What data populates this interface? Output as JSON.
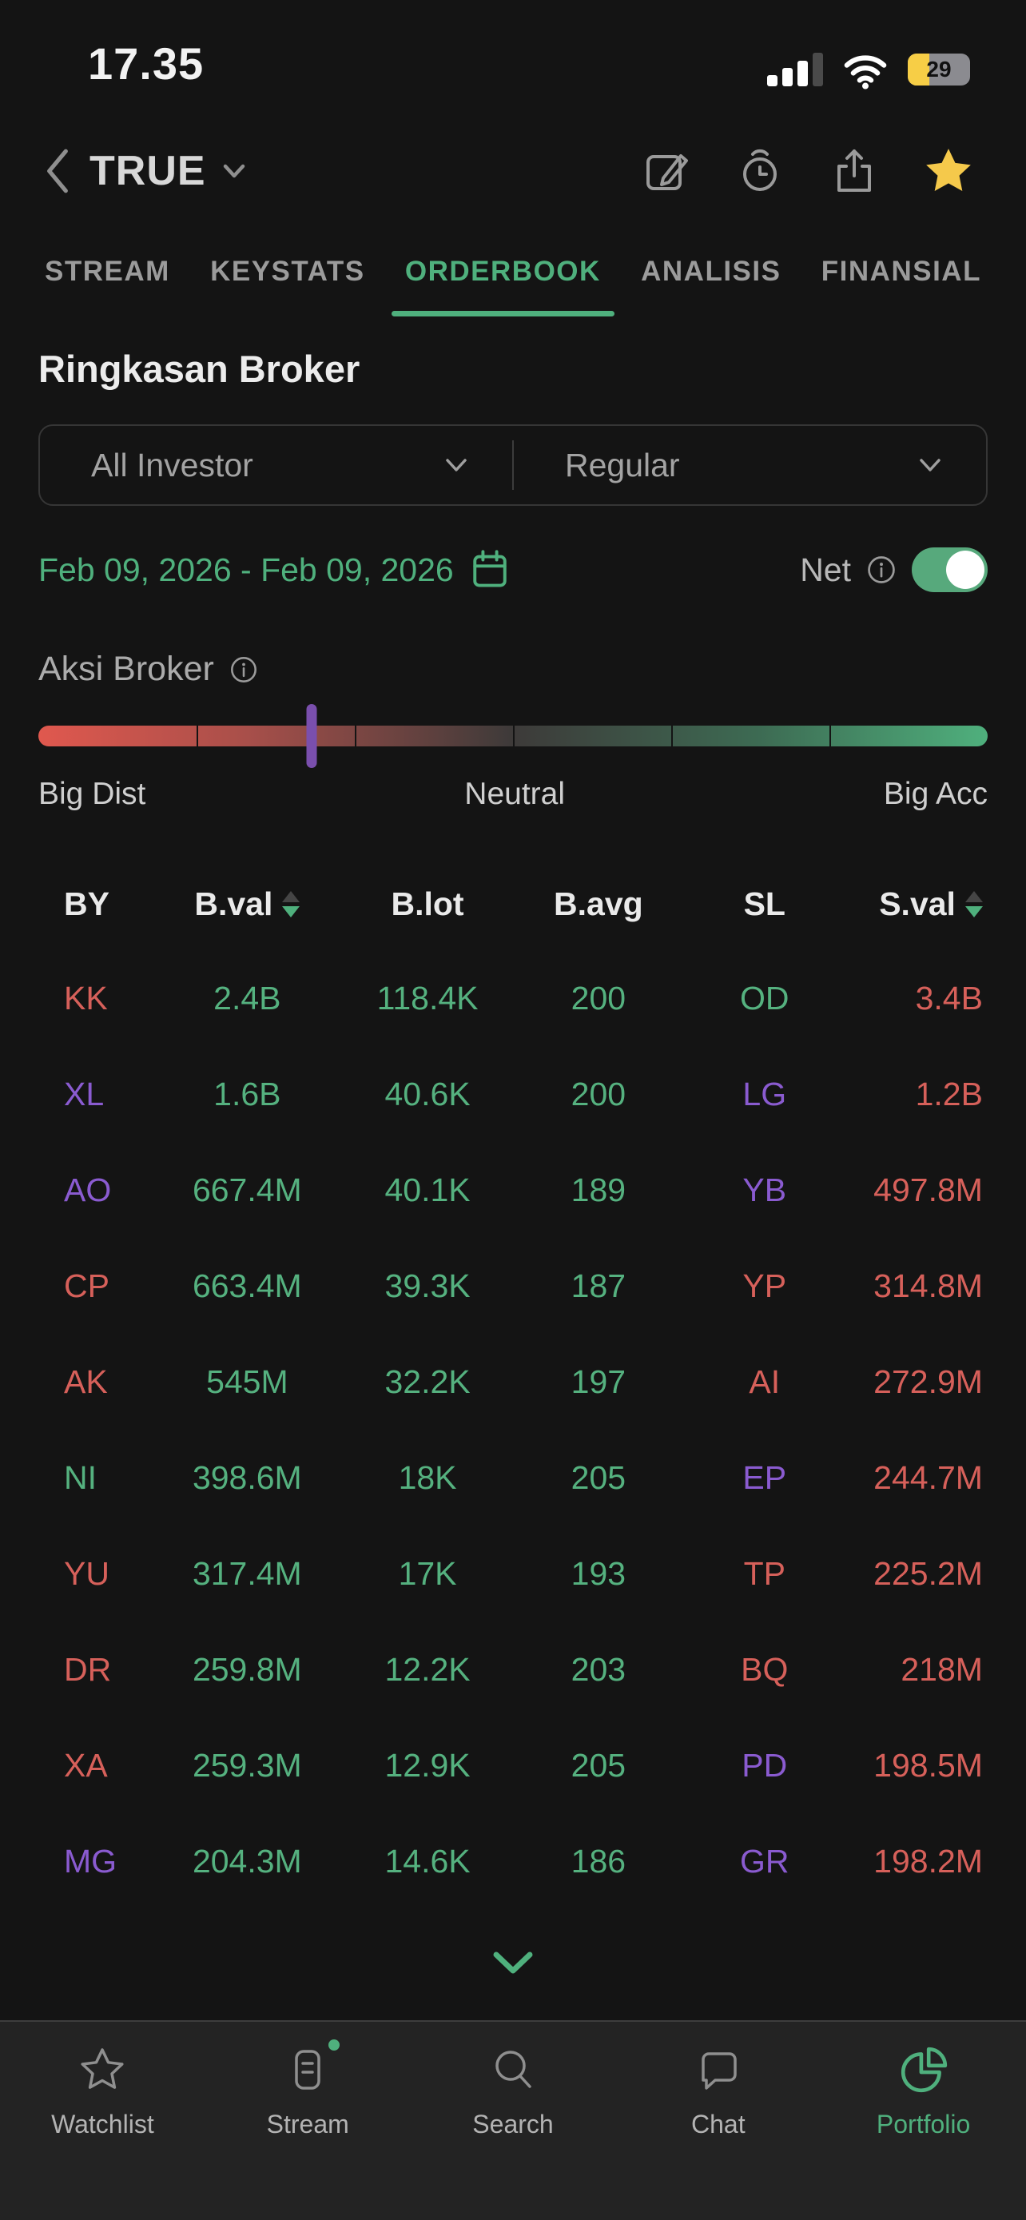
{
  "status_bar": {
    "time": "17.35",
    "battery_percent": "29"
  },
  "stock_header": {
    "symbol": "TRUE"
  },
  "tabs": [
    {
      "label": "STREAM",
      "active": false
    },
    {
      "label": "KEYSTATS",
      "active": false
    },
    {
      "label": "ORDERBOOK",
      "active": true
    },
    {
      "label": "ANALISIS",
      "active": false
    },
    {
      "label": "FINANSIAL",
      "active": false
    }
  ],
  "broker_summary": {
    "title": "Ringkasan Broker",
    "investor_filter": "All Investor",
    "market_filter": "Regular",
    "date_range": "Feb 09, 2026 - Feb 09, 2026",
    "net_label": "Net",
    "net_toggle_on": true,
    "action_gauge": {
      "label": "Aksi Broker",
      "left_label": "Big Dist",
      "center_label": "Neutral",
      "right_label": "Big Acc",
      "marker_position_pct": 28.8
    }
  },
  "table": {
    "columns": [
      {
        "label": "BY",
        "sortable": false
      },
      {
        "label": "B.val",
        "sortable": true,
        "sort": "desc"
      },
      {
        "label": "B.lot",
        "sortable": false
      },
      {
        "label": "B.avg",
        "sortable": false
      },
      {
        "label": "SL",
        "sortable": false
      },
      {
        "label": "S.val",
        "sortable": true,
        "sort": "desc"
      }
    ],
    "rows": [
      {
        "by": "KK",
        "by_color": "red",
        "bval": "2.4B",
        "blot": "118.4K",
        "bavg": "200",
        "sl": "OD",
        "sl_color": "green",
        "sval": "3.4B"
      },
      {
        "by": "XL",
        "by_color": "purple",
        "bval": "1.6B",
        "blot": "40.6K",
        "bavg": "200",
        "sl": "LG",
        "sl_color": "purple",
        "sval": "1.2B"
      },
      {
        "by": "AO",
        "by_color": "purple",
        "bval": "667.4M",
        "blot": "40.1K",
        "bavg": "189",
        "sl": "YB",
        "sl_color": "purple",
        "sval": "497.8M"
      },
      {
        "by": "CP",
        "by_color": "red",
        "bval": "663.4M",
        "blot": "39.3K",
        "bavg": "187",
        "sl": "YP",
        "sl_color": "red",
        "sval": "314.8M"
      },
      {
        "by": "AK",
        "by_color": "red",
        "bval": "545M",
        "blot": "32.2K",
        "bavg": "197",
        "sl": "AI",
        "sl_color": "red",
        "sval": "272.9M"
      },
      {
        "by": "NI",
        "by_color": "green",
        "bval": "398.6M",
        "blot": "18K",
        "bavg": "205",
        "sl": "EP",
        "sl_color": "purple",
        "sval": "244.7M"
      },
      {
        "by": "YU",
        "by_color": "red",
        "bval": "317.4M",
        "blot": "17K",
        "bavg": "193",
        "sl": "TP",
        "sl_color": "red",
        "sval": "225.2M"
      },
      {
        "by": "DR",
        "by_color": "red",
        "bval": "259.8M",
        "blot": "12.2K",
        "bavg": "203",
        "sl": "BQ",
        "sl_color": "red",
        "sval": "218M"
      },
      {
        "by": "XA",
        "by_color": "red",
        "bval": "259.3M",
        "blot": "12.9K",
        "bavg": "205",
        "sl": "PD",
        "sl_color": "purple",
        "sval": "198.5M"
      },
      {
        "by": "MG",
        "by_color": "purple",
        "bval": "204.3M",
        "blot": "14.6K",
        "bavg": "186",
        "sl": "GR",
        "sl_color": "purple",
        "sval": "198.2M"
      }
    ]
  },
  "bottom_nav": {
    "items": [
      {
        "label": "Watchlist",
        "icon": "star-outline",
        "active": false,
        "has_badge": false
      },
      {
        "label": "Stream",
        "icon": "stream-feed",
        "active": false,
        "has_badge": true
      },
      {
        "label": "Search",
        "icon": "magnifier",
        "active": false,
        "has_badge": false
      },
      {
        "label": "Chat",
        "icon": "speech-bubble",
        "active": false,
        "has_badge": false
      },
      {
        "label": "Portfolio",
        "icon": "pie-chart",
        "active": true,
        "has_badge": false
      }
    ]
  },
  "colors": {
    "accent_green": "#4FB07D",
    "value_green": "#55B17F",
    "negative_red": "#D6605A",
    "broker_purple": "#8A5BD0",
    "star_yellow": "#F5C94B",
    "battery_yellow": "#F7CE46",
    "marker_purple": "#7A4FAD"
  }
}
